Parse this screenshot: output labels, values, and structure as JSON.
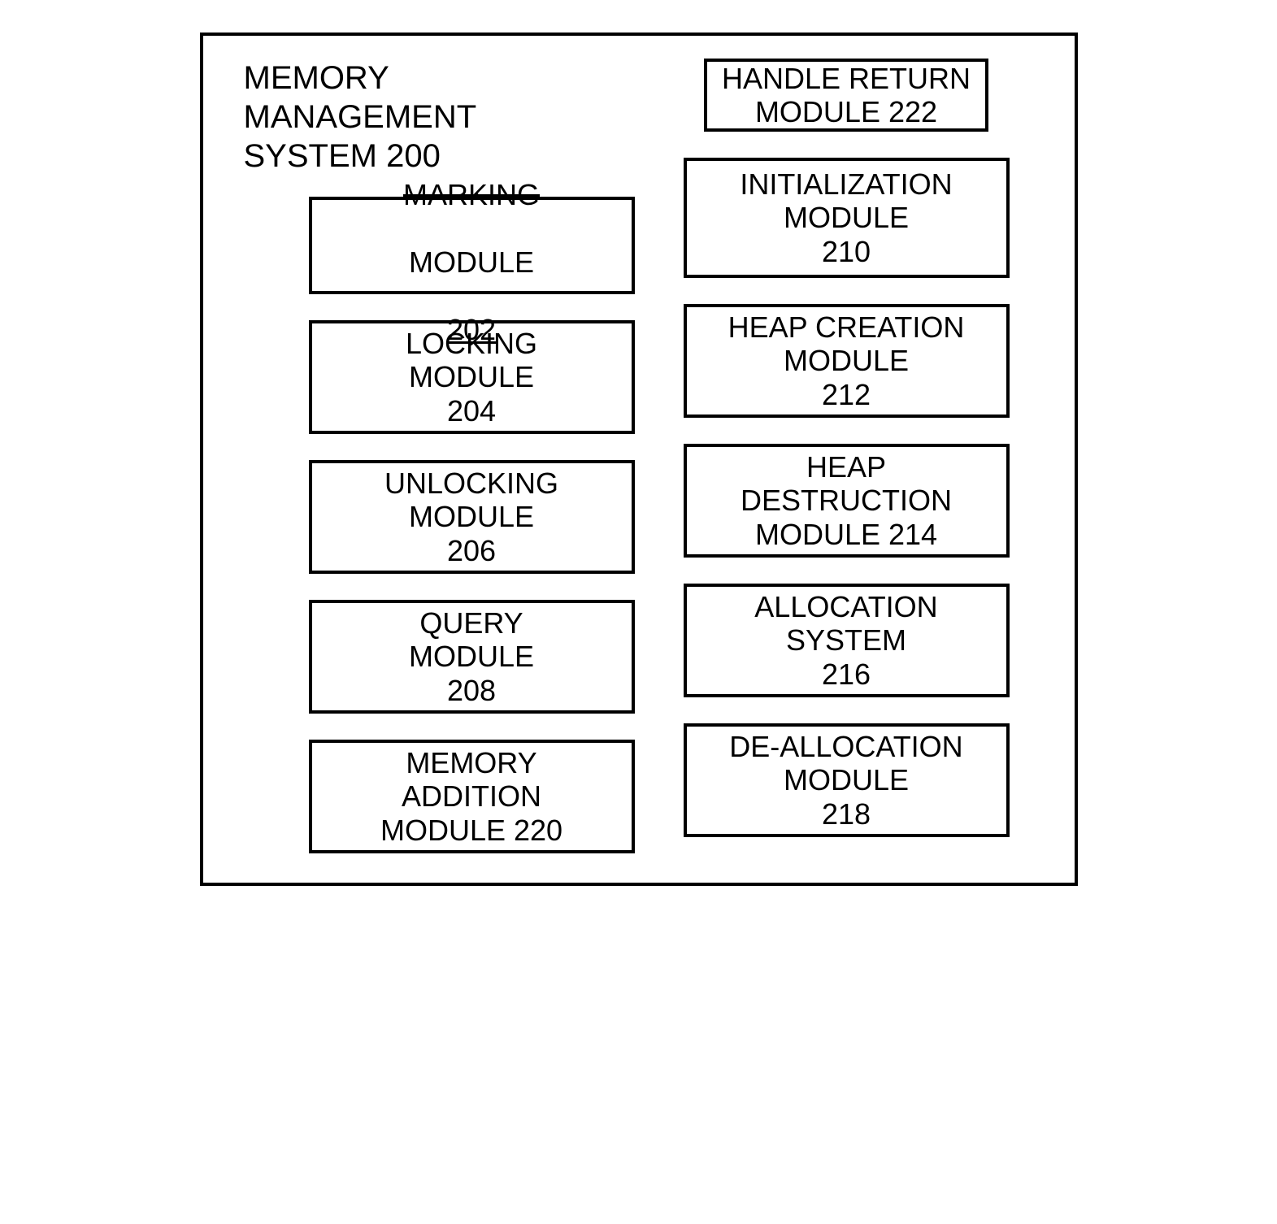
{
  "diagram": {
    "type": "block-diagram",
    "background_color": "#ffffff",
    "border_color": "#000000",
    "border_width": 4,
    "font_family": "Arial",
    "title_fontsize": 40,
    "box_fontsize": 36,
    "title": "MEMORY\nMANAGEMENT\nSYSTEM 200",
    "left_column": [
      {
        "id": "marking-module",
        "line1": "MARKING",
        "line1_strike": true,
        "line2": "MODULE",
        "line3": "202",
        "line3_underline": true,
        "box_class": "box-marking"
      },
      {
        "id": "locking-module",
        "text": "LOCKING\nMODULE\n204",
        "box_class": "box-normal"
      },
      {
        "id": "unlocking-module",
        "text": "UNLOCKING\nMODULE\n206",
        "box_class": "box-normal"
      },
      {
        "id": "query-module",
        "text": "QUERY\nMODULE\n208",
        "box_class": "box-normal"
      },
      {
        "id": "memory-addition-module",
        "text": "MEMORY\nADDITION\nMODULE 220",
        "box_class": "box-normal"
      }
    ],
    "right_column": [
      {
        "id": "handle-return-module",
        "text": "HANDLE RETURN\nMODULE 222",
        "box_class": "box-short box-right-first"
      },
      {
        "id": "initialization-module",
        "text": "INITIALIZATION\nMODULE\n210",
        "box_class": "box-tall"
      },
      {
        "id": "heap-creation-module",
        "text": "HEAP CREATION\nMODULE\n212",
        "box_class": "box-normal"
      },
      {
        "id": "heap-destruction-module",
        "text": "HEAP\nDESTRUCTION\nMODULE 214",
        "box_class": "box-normal"
      },
      {
        "id": "allocation-system",
        "text": "ALLOCATION\nSYSTEM\n216",
        "box_class": "box-normal"
      },
      {
        "id": "de-allocation-module",
        "text": "DE-ALLOCATION\nMODULE\n218",
        "box_class": "box-normal"
      }
    ]
  }
}
